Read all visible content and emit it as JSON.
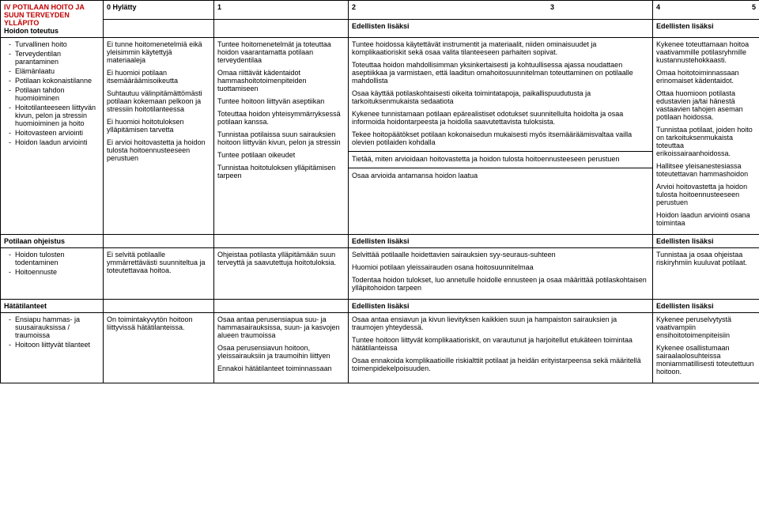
{
  "header": {
    "section_title_1": "IV POTILAAN HOITO JA",
    "section_title_2": "SUUN TERVEYDEN",
    "section_title_3": "YLLÄPITO",
    "c1": "0 Hylätty",
    "c2": "1",
    "c3": "2",
    "c4": "3",
    "c5": "4",
    "c6": "5"
  },
  "row1": {
    "title": "Hoidon toteutus",
    "bullets": [
      "Turvallinen hoito",
      "Terveydentilan parantaminen",
      "Elämänlaatu",
      "Potilaan kokonaistilanne",
      "Potilaan tahdon huomioiminen",
      "Hoitotilanteeseen liittyvän kivun, pelon ja stressin huomioiminen ja hoito",
      "Hoitovasteen arviointi",
      "Hoidon laadun arviointi"
    ],
    "col1": {
      "p1": "Ei tunne hoitomenetelmiä eikä yleisimmin käytettyjä materiaaleja",
      "p2": "Ei huomioi potilaan itsemääräämisoikeutta",
      "p3": "Suhtautuu välinpitämättömästi potilaan kokemaan pelkoon ja stressiin hoitotilanteessa",
      "p4": "Ei huomioi hoitotuloksen ylläpitämisen tarvetta",
      "p5": "Ei arvioi hoitovastetta ja hoidon tulosta hoitoennusteeseen perustuen"
    },
    "col2": {
      "p1": "Tuntee hoitomenetelmät ja toteuttaa hoidon vaarantamatta potilaan terveydentilaa",
      "p2": "Omaa riittävät kädentaidot hammashoitotoimenpiteiden tuottamiseen",
      "p3": "Tuntee hoitoon liittyvän aseptiikan",
      "p4": "Toteuttaa hoidon yhteisymmärryksessä potilaan kanssa.",
      "p5": "Tunnistaa potilaissa suun sairauksien hoitoon liittyvän kivun, pelon ja stressin",
      "p6": "Tuntee potilaan oikeudet",
      "p7": "Tunnistaa hoitotuloksen ylläpitämisen tarpeen"
    },
    "col3": {
      "pre": "Edellisten lisäksi",
      "p1": "Tuntee hoidossa käytettävät instrumentit ja materiaalit, niiden ominaisuudet ja komplikaatioriskit sekä osaa valita tilanteeseen parhaiten sopivat.",
      "p2": "Toteuttaa hoidon mahdollisimman yksinkertaisesti ja kohtuullisessa ajassa noudattaen aseptiikkaa ja varmistaen, että laaditun omahoitosuunnitelman toteuttaminen on potilaalle mahdollista",
      "p3": "Osaa käyttää potilaskohtaisesti oikeita toimintatapoja, paikallispuudutusta ja tarkoituksenmukaista sedaatiota",
      "p4": "Kykenee tunnistamaan potilaan epärealistiset odotukset suunnitellulta hoidolta ja osaa informoida hoidontarpeesta ja hoidolla saavutettavista tuloksista.",
      "p5": "Tekee hoitopäätökset potilaan kokonaisedun mukaisesti myös itsemääräämisvaltaa vailla olevien potilaiden kohdalla",
      "p6": "Tietää, miten arvioidaan hoitovastetta ja hoidon tulosta hoitoennusteeseen perustuen",
      "p7": "Osaa arvioida antamansa hoidon laatua"
    },
    "col5": {
      "pre": "Edellisten lisäksi",
      "p1": "Kykenee toteuttamaan hoitoa vaativammille potilasryhmille kustannustehokkaasti.",
      "p2": "Omaa hoitotoiminnassaan erinomaiset kädentaidot.",
      "p3": "Ottaa huomioon potilasta edustavien ja/tai hänestä vastaavien tahojen aseman potilaan hoidossa.",
      "p4": "Tunnistaa potilaat, joiden hoito on tarkoituksenmukaista toteuttaa erikoissairaanhoidossa.",
      "p5": "Hallitsee yleisanestesiassa toteutettavan hammashoidon",
      "p6": "Arvioi hoitovastetta ja hoidon tulosta hoitoennusteeseen perustuen",
      "p7": "Hoidon laadun arviointi osana toimintaa"
    }
  },
  "row2": {
    "title": "Potilaan ohjeistus",
    "bullets": [
      "Hoidon tulosten todentaminen",
      "Hoitoennuste"
    ],
    "col1": "Ei selvitä potilaalle ymmärrettävästi suunniteltua ja toteutettavaa hoitoa.",
    "col2": "Ohjeistaa potilasta ylläpitämään suun terveyttä ja saavutettuja hoitotuloksia.",
    "col3": {
      "pre": "Edellisten lisäksi",
      "p1": "Selvittää potilaalle hoidettavien sairauksien syy-seuraus-suhteen",
      "p2": "Huomioi potilaan yleissairauden osana hoitosuunnitelmaa",
      "p3": "Todentaa hoidon tulokset, luo annetulle hoidolle ennusteen ja osaa määrittää potilaskohtaisen ylläpitohoidon tarpeen"
    },
    "col5": {
      "pre": "Edellisten lisäksi",
      "p1": "Tunnistaa ja osaa ohjeistaa riskiryhmiin kuuluvat potilaat."
    }
  },
  "row3": {
    "title": "Hätätilanteet",
    "bullets": [
      "Ensiapu hammas- ja suusairauksissa / traumoissa",
      "Hoitoon liittyvät tilanteet"
    ],
    "col1": "On toimintakyvytön hoitoon liittyvissä hätätilanteissa.",
    "col2": {
      "p1": "Osaa antaa perusensiapua suu- ja hammasairauksissa, suun- ja kasvojen alueen traumoissa",
      "p2": "Osaa perusensiavun hoitoon, yleissairauksiin ja traumoihin liittyen",
      "p3": "Ennakoi hätätilanteet toiminnassaan"
    },
    "col3": {
      "pre": "Edellisten lisäksi",
      "p1": "Osaa antaa ensiavun ja kivun lievityksen kaikkien suun ja hampaiston sairauksien ja traumojen yhteydessä.",
      "p2": "Tuntee hoitoon liittyvät komplikaatioriskit, on varautunut ja harjoitellut etukäteen toimintaa hätätilanteissa",
      "p3": "Osaa ennakoida komplikaatioille riskialttiit potilaat ja heidän erityistarpeensa sekä määritellä toimenpidekelpoisuuden."
    },
    "col5": {
      "pre": "Edellisten lisäksi",
      "p1": "Kykenee peruselvytystä vaativampiin ensihoitotoimenpiteisiin",
      "p2": "Kykenee osallistumaan sairaalaolosuhteissa moniammatillisesti toteutettuun hoitoon."
    }
  }
}
